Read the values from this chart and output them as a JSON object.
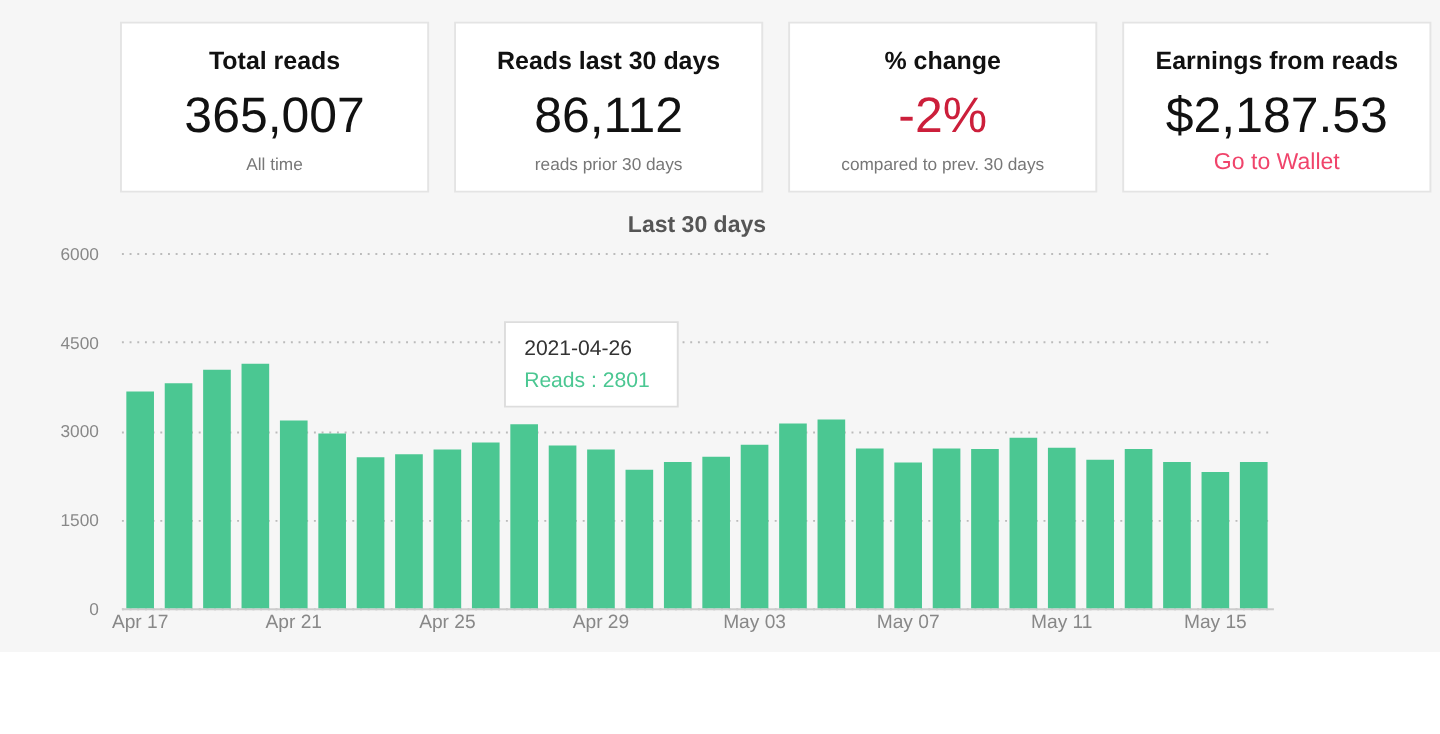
{
  "chart_data": [
    {
      "type": "other",
      "title": "Total reads",
      "annotations": [
        "365,007",
        "All time"
      ]
    },
    {
      "type": "other",
      "title": "Reads last 30 days",
      "annotations": [
        "86,112",
        "reads prior 30 days"
      ]
    },
    {
      "type": "other",
      "title": "% change",
      "annotations": [
        "-2%",
        "compared to prev. 30 days"
      ]
    },
    {
      "type": "other",
      "title": "Earnings from reads",
      "annotations": [
        "$2,187.53",
        "Go to Wallet"
      ]
    },
    {
      "type": "bar",
      "title": "Last 30 days",
      "categories": [
        "Apr 17",
        null,
        null,
        null,
        "Apr 21",
        null,
        null,
        null,
        "Apr 25",
        null,
        null,
        null,
        "Apr 29",
        null,
        null,
        null,
        "May 03",
        null,
        null,
        null,
        "May 07",
        null,
        null,
        null,
        "May 11",
        null,
        null,
        null,
        "May 15",
        null
      ],
      "values": [
        3660,
        3800,
        4030,
        4130,
        3170,
        2950,
        2550,
        2600,
        2680,
        2801,
        3110,
        2750,
        2680,
        2340,
        2470,
        2560,
        2760,
        3120,
        3190,
        2700,
        2460,
        2700,
        2690,
        2880,
        2710,
        2510,
        2690,
        2470,
        2300,
        2470
      ],
      "color": "#4bc792",
      "ylim": [
        0,
        6000
      ],
      "yticks": [
        0,
        1500,
        3000,
        4500,
        6000
      ],
      "grid": "y",
      "annotations": [
        "2021-04-26",
        "Reads : 2801"
      ]
    }
  ]
}
